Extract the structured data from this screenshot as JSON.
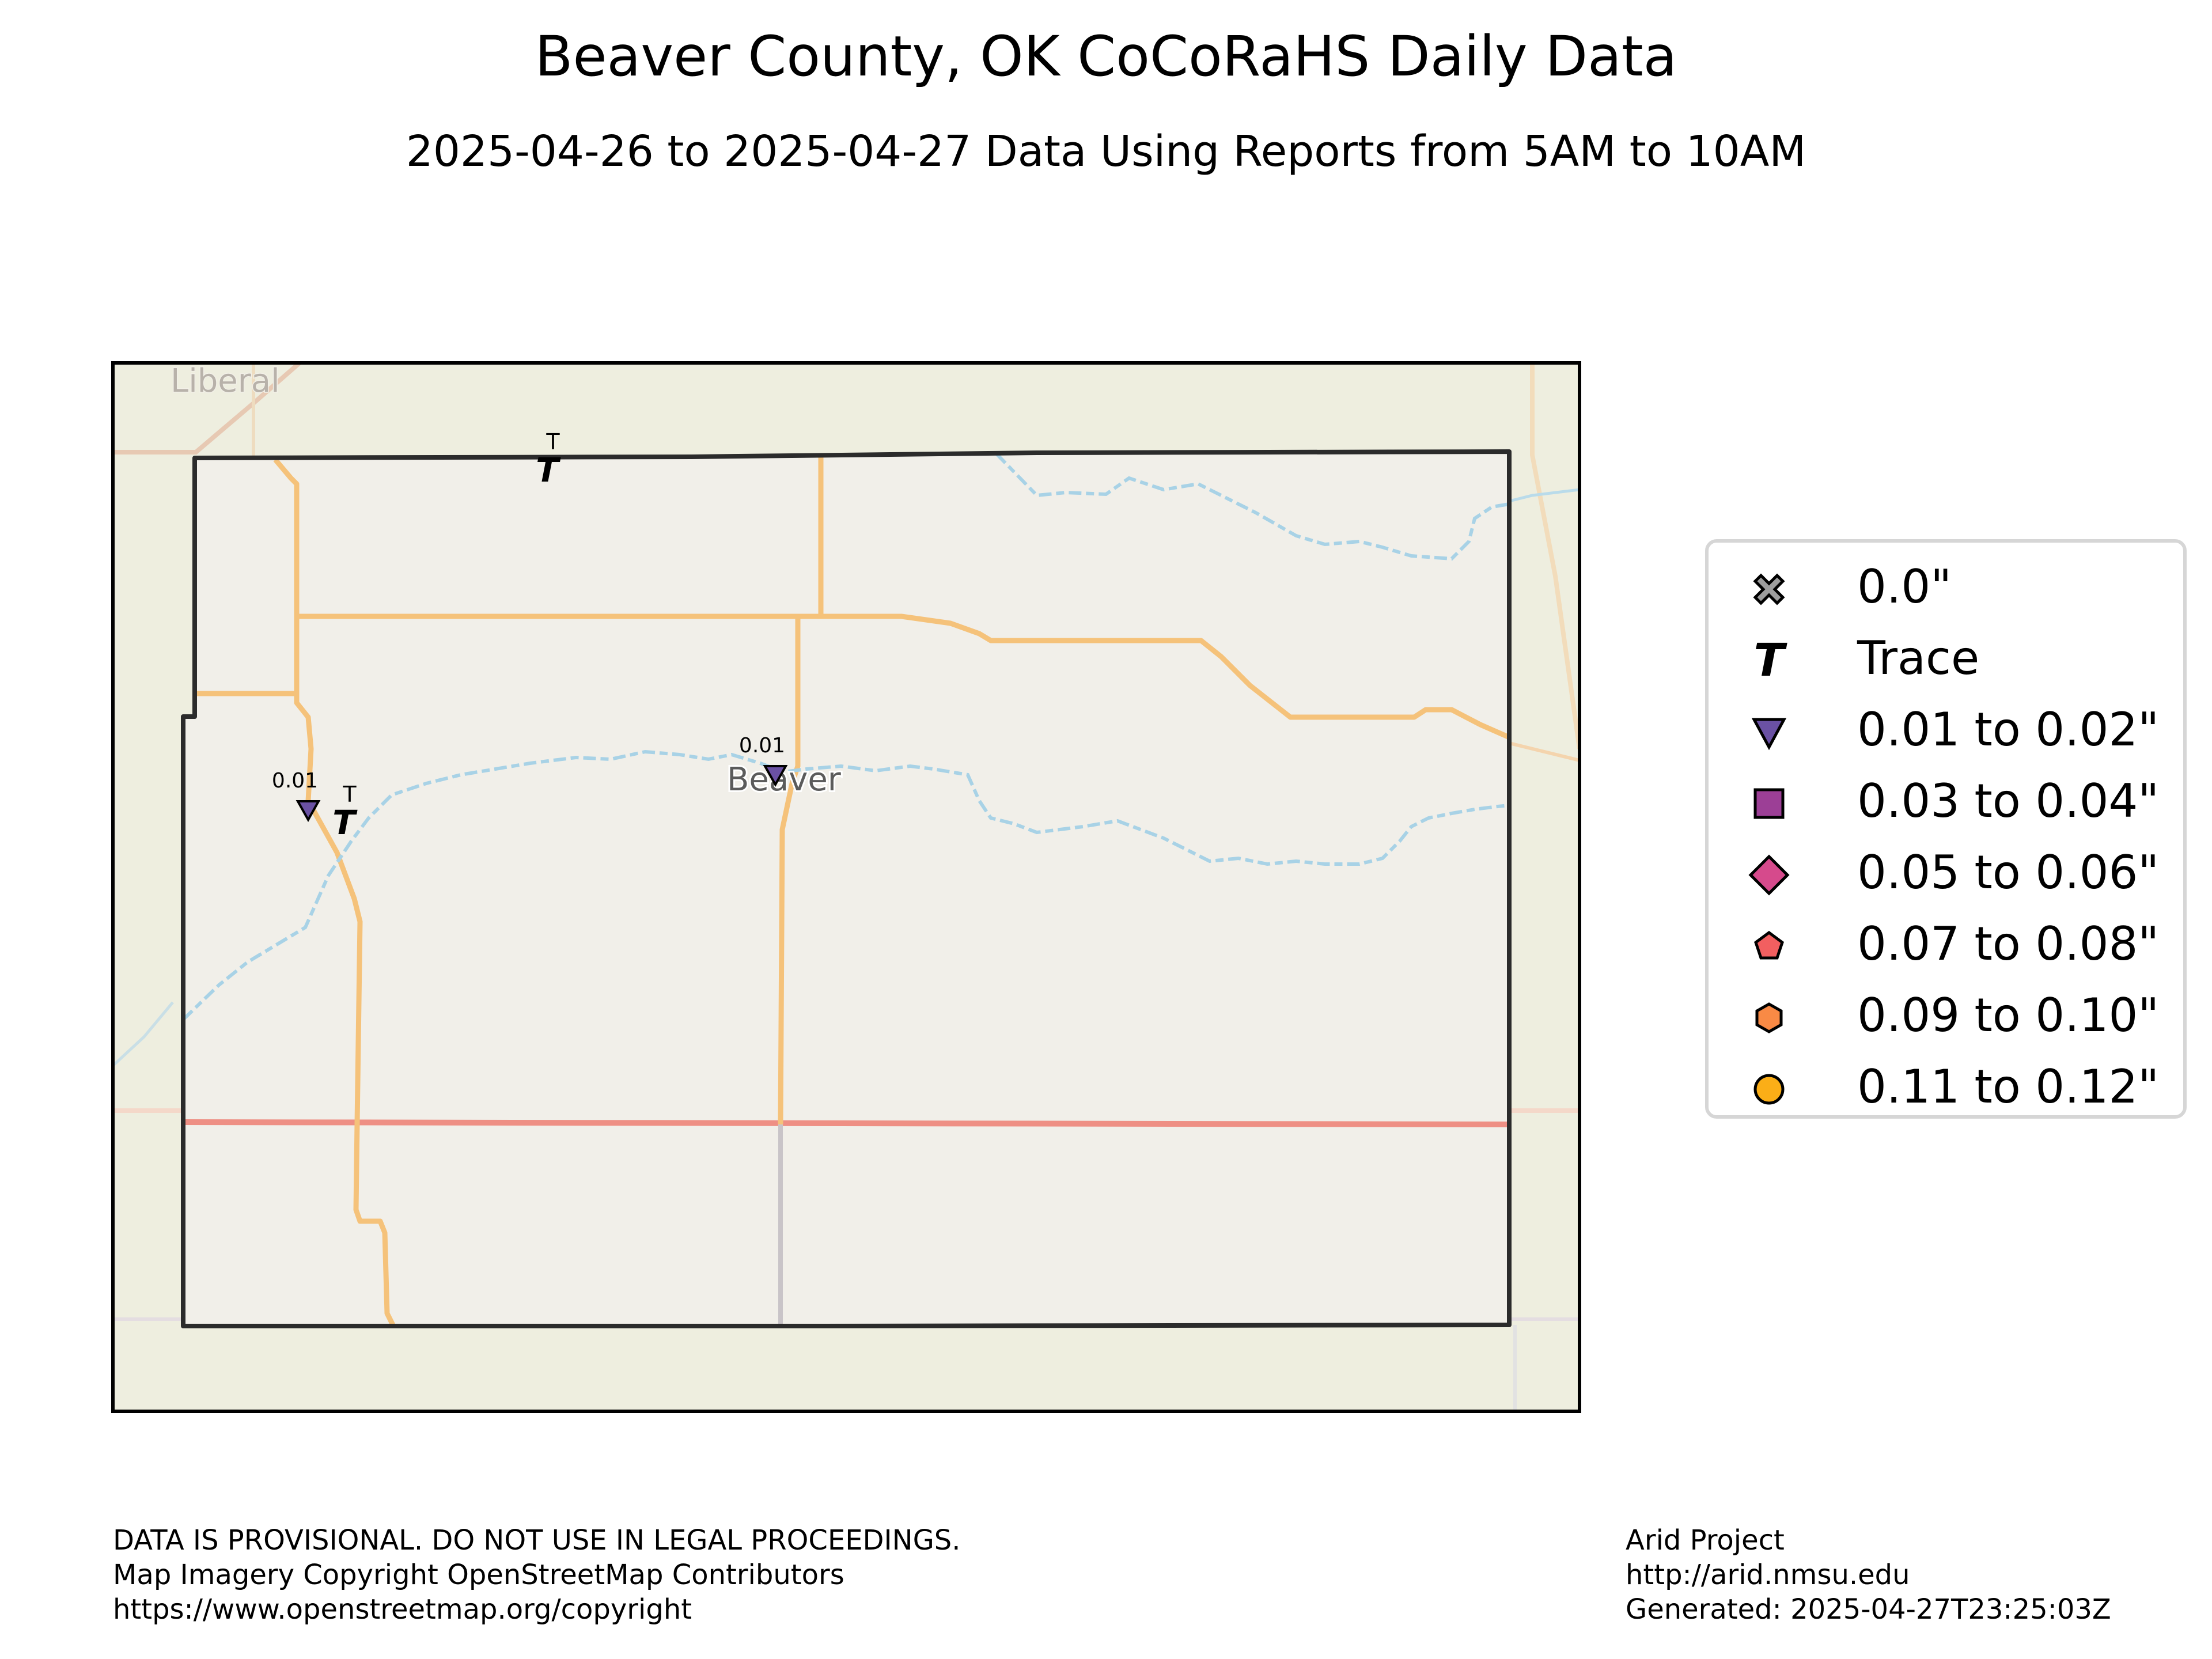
{
  "title": "Beaver County, OK CoCoRaHS Daily Data",
  "subtitle": "2025-04-26 to 2025-04-27 Data Using Reports from 5AM to 10AM",
  "map_labels": {
    "city_north": "Liberal",
    "city_center": "Beaver"
  },
  "colors": {
    "map_background": "#eeeedf",
    "county_fill": "#f1efe9",
    "road": "#f5c27a",
    "highway": "#ee8f84",
    "river": "#a8d2e6",
    "border": "#2b2b2b"
  },
  "stations": [
    {
      "label": "T",
      "symbol": "trace",
      "value": "Trace"
    },
    {
      "label": "0.01",
      "symbol": "triangle-down",
      "value": 0.01
    },
    {
      "label": "T",
      "symbol": "trace",
      "value": "Trace"
    },
    {
      "label": "0.01",
      "symbol": "triangle-down",
      "value": 0.01
    }
  ],
  "legend": {
    "items": [
      {
        "label": "0.0\"",
        "symbol": "x-mark",
        "color": "#9e9e9e"
      },
      {
        "label": "Trace",
        "symbol": "trace",
        "color": "#000000"
      },
      {
        "label": "0.01 to 0.02\"",
        "symbol": "triangle-down",
        "color": "#6a51a3"
      },
      {
        "label": "0.03 to 0.04\"",
        "symbol": "square",
        "color": "#9c3f96"
      },
      {
        "label": "0.05 to 0.06\"",
        "symbol": "diamond",
        "color": "#d64a8c"
      },
      {
        "label": "0.07 to 0.08\"",
        "symbol": "pentagon",
        "color": "#f25f60"
      },
      {
        "label": "0.09 to 0.10\"",
        "symbol": "hexagon",
        "color": "#f98a45"
      },
      {
        "label": "0.11 to 0.12\"",
        "symbol": "circle",
        "color": "#fbae17"
      }
    ]
  },
  "footer_left": [
    "DATA IS PROVISIONAL. DO NOT USE IN LEGAL PROCEEDINGS.",
    "Map Imagery Copyright OpenStreetMap Contributors",
    "https://www.openstreetmap.org/copyright"
  ],
  "footer_right": [
    "Arid Project",
    "http://arid.nmsu.edu",
    "Generated: 2025-04-27T23:25:03Z"
  ]
}
